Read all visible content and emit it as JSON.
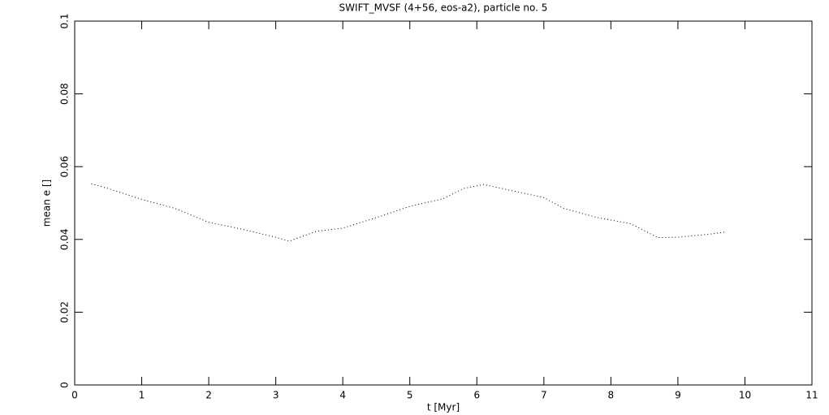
{
  "chart_data": {
    "type": "line",
    "title": "SWIFT_MVSF (4+56, eos-a2), particle no. 5",
    "x_label": "t [Myr]",
    "y_label": "mean e []",
    "x": [
      0.25,
      0.5,
      1.0,
      1.5,
      2.0,
      2.5,
      3.0,
      3.2,
      3.6,
      4.0,
      4.5,
      5.0,
      5.5,
      5.8,
      6.1,
      6.5,
      7.0,
      7.3,
      7.8,
      8.3,
      8.7,
      9.0,
      9.5,
      9.7
    ],
    "series": [
      {
        "name": "mean e",
        "color": "#000000",
        "values": [
          0.0553,
          0.054,
          0.051,
          0.0485,
          0.0447,
          0.0428,
          0.0406,
          0.0395,
          0.0422,
          0.0431,
          0.046,
          0.0491,
          0.0512,
          0.054,
          0.0551,
          0.0535,
          0.0515,
          0.0485,
          0.046,
          0.0443,
          0.0405,
          0.0406,
          0.0415,
          0.042
        ]
      }
    ],
    "xlim": [
      0,
      11
    ],
    "xticks": [
      0,
      1,
      2,
      3,
      4,
      5,
      6,
      7,
      8,
      9,
      10,
      11
    ],
    "ylim": [
      0,
      0.1
    ],
    "yticks": [
      0,
      0.02,
      0.04,
      0.06,
      0.08,
      0.1
    ]
  }
}
